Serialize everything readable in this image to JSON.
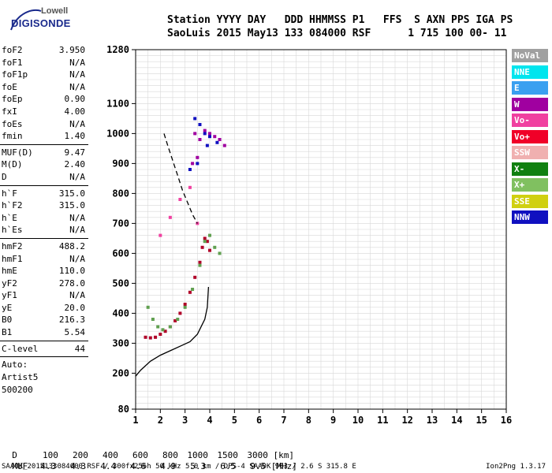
{
  "logo": {
    "top": "Lowell",
    "main": "DIGISONDE"
  },
  "header": {
    "line1": "Station YYYY DAY   DDD HHMMSS P1   FFS  S AXN PPS IGA PS",
    "line2": "SaoLuis 2015 May13 133 084000 RSF      1 715 100 00- 11"
  },
  "params": {
    "group1": [
      {
        "label": "foF2",
        "value": "3.950"
      },
      {
        "label": "foF1",
        "value": "N/A"
      },
      {
        "label": "foF1p",
        "value": "N/A"
      },
      {
        "label": "foE",
        "value": "N/A"
      },
      {
        "label": "foEp",
        "value": "0.90"
      },
      {
        "label": "fxI",
        "value": "4.00"
      },
      {
        "label": "foEs",
        "value": "N/A"
      },
      {
        "label": "fmin",
        "value": "1.40"
      }
    ],
    "group2": [
      {
        "label": "MUF(D)",
        "value": "9.47"
      },
      {
        "label": "M(D)",
        "value": "2.40"
      },
      {
        "label": "D",
        "value": "N/A"
      }
    ],
    "group3": [
      {
        "label": "h`F",
        "value": "315.0"
      },
      {
        "label": "h`F2",
        "value": "315.0"
      },
      {
        "label": "h`E",
        "value": "N/A"
      },
      {
        "label": "h`Es",
        "value": "N/A"
      }
    ],
    "group4": [
      {
        "label": "hmF2",
        "value": "488.2"
      },
      {
        "label": "hmF1",
        "value": "N/A"
      },
      {
        "label": "hmE",
        "value": "110.0"
      },
      {
        "label": "yF2",
        "value": "278.0"
      },
      {
        "label": "yF1",
        "value": "N/A"
      },
      {
        "label": "yE",
        "value": "20.0"
      },
      {
        "label": "B0",
        "value": "216.3"
      },
      {
        "label": "B1",
        "value": "5.54"
      }
    ],
    "group5": [
      {
        "label": "C-level",
        "value": "44"
      }
    ],
    "auto": [
      "Auto:",
      "Artist5",
      "500200"
    ]
  },
  "legend": [
    {
      "label": "NoVal",
      "color": "#a0a0a0"
    },
    {
      "label": "NNE",
      "color": "#00e5ee"
    },
    {
      "label": "E",
      "color": "#3aa0f0"
    },
    {
      "label": "W",
      "color": "#a000a0"
    },
    {
      "label": "Vo-",
      "color": "#f040a0"
    },
    {
      "label": "Vo+",
      "color": "#f00028"
    },
    {
      "label": "SSW",
      "color": "#f0b0b0"
    },
    {
      "label": "X-",
      "color": "#108010"
    },
    {
      "label": "X+",
      "color": "#80c060"
    },
    {
      "label": "SSE",
      "color": "#d0d010"
    },
    {
      "label": "NNW",
      "color": "#1010c0"
    }
  ],
  "chart_data": {
    "type": "scatter",
    "xlim": [
      1,
      16
    ],
    "ylim": [
      80,
      1280
    ],
    "x_ticks": [
      1,
      2,
      3,
      4,
      5,
      6,
      7,
      8,
      9,
      10,
      11,
      12,
      13,
      14,
      15,
      16
    ],
    "y_ticks": [
      80,
      200,
      300,
      400,
      500,
      600,
      700,
      800,
      900,
      1000,
      1100,
      1280
    ],
    "grid": true,
    "series": [
      {
        "name": "Vo+",
        "color": "#b00028",
        "points": [
          [
            1.4,
            320
          ],
          [
            1.6,
            318
          ],
          [
            1.8,
            320
          ],
          [
            2.0,
            330
          ],
          [
            2.2,
            340
          ],
          [
            2.4,
            355
          ],
          [
            2.6,
            375
          ],
          [
            2.8,
            400
          ],
          [
            3.0,
            430
          ],
          [
            3.2,
            470
          ],
          [
            3.4,
            520
          ],
          [
            3.6,
            570
          ],
          [
            3.7,
            620
          ],
          [
            3.8,
            650
          ],
          [
            3.9,
            640
          ],
          [
            4.0,
            610
          ]
        ]
      },
      {
        "name": "X+",
        "color": "#60a050",
        "points": [
          [
            1.5,
            420
          ],
          [
            1.7,
            380
          ],
          [
            1.9,
            355
          ],
          [
            2.1,
            345
          ],
          [
            2.4,
            355
          ],
          [
            2.7,
            380
          ],
          [
            3.0,
            420
          ],
          [
            3.3,
            480
          ],
          [
            3.6,
            560
          ],
          [
            3.8,
            640
          ],
          [
            4.0,
            660
          ],
          [
            4.2,
            620
          ],
          [
            4.4,
            600
          ]
        ]
      },
      {
        "name": "W",
        "color": "#a000a0",
        "points": [
          [
            3.4,
            1000
          ],
          [
            3.6,
            980
          ],
          [
            3.8,
            1010
          ],
          [
            4.0,
            1000
          ],
          [
            4.2,
            990
          ],
          [
            4.4,
            980
          ],
          [
            4.6,
            960
          ],
          [
            3.3,
            900
          ],
          [
            3.5,
            920
          ]
        ]
      },
      {
        "name": "NNW",
        "color": "#1010c0",
        "points": [
          [
            3.4,
            1050
          ],
          [
            3.6,
            1030
          ],
          [
            3.8,
            1000
          ],
          [
            4.0,
            990
          ],
          [
            4.3,
            970
          ],
          [
            3.2,
            880
          ],
          [
            3.5,
            900
          ],
          [
            3.9,
            960
          ]
        ]
      },
      {
        "name": "Vo-",
        "color": "#f040a0",
        "points": [
          [
            2.0,
            660
          ],
          [
            2.4,
            720
          ],
          [
            2.8,
            780
          ],
          [
            3.2,
            820
          ],
          [
            3.5,
            700
          ]
        ]
      }
    ],
    "profile_curve": [
      [
        1.0,
        190
      ],
      [
        1.2,
        210
      ],
      [
        1.6,
        240
      ],
      [
        2.0,
        260
      ],
      [
        2.4,
        275
      ],
      [
        2.8,
        290
      ],
      [
        3.2,
        305
      ],
      [
        3.5,
        330
      ],
      [
        3.8,
        380
      ],
      [
        3.9,
        420
      ],
      [
        3.95,
        488
      ]
    ],
    "dashed_curve": [
      [
        2.15,
        1000
      ],
      [
        2.3,
        960
      ],
      [
        2.5,
        910
      ],
      [
        2.7,
        860
      ],
      [
        2.9,
        810
      ],
      [
        3.1,
        770
      ],
      [
        3.3,
        730
      ],
      [
        3.5,
        700
      ]
    ],
    "footer_tables": {
      "d_label": "D",
      "d_values": [
        "100",
        "200",
        "400",
        "600",
        "800",
        "1000",
        "1500",
        "3000"
      ],
      "d_unit": "[km]",
      "muf_label": "MUF",
      "muf_values": [
        "4.3",
        "4.3",
        "4.4",
        "4.6",
        "4.9",
        "5.3",
        "6.5",
        "9.5"
      ],
      "muf_unit": "[MHz]"
    }
  },
  "bottom": {
    "file": "SAA0K_2015133084000.RSF / 300fx256h 50 kHz 5.0 km / DPS-4 SAA0K 903 / 2.6 S 315.8 E",
    "version": "Ion2Png 1.3.17"
  }
}
